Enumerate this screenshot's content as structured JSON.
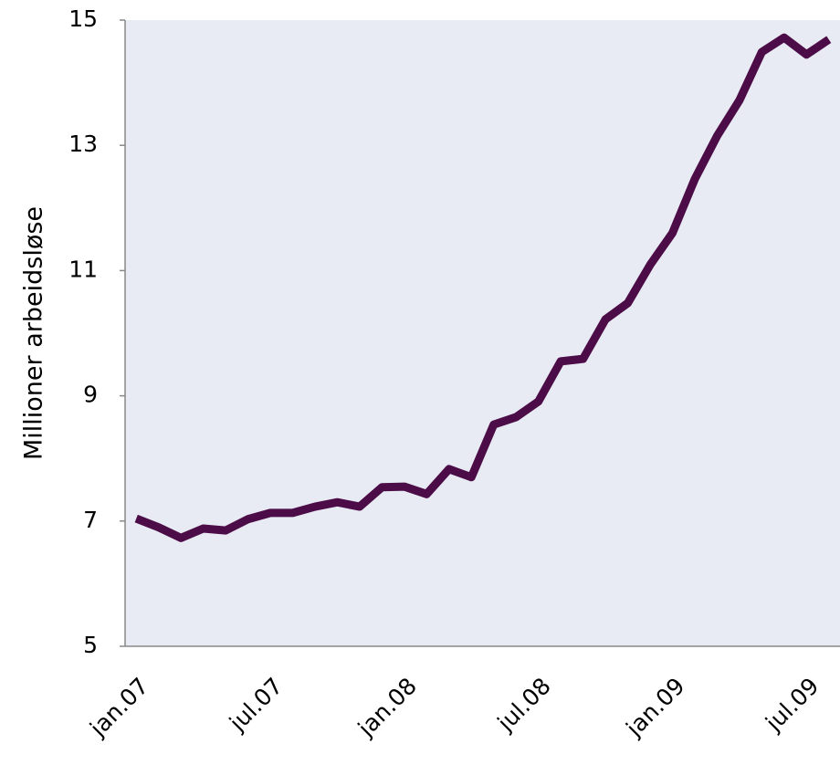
{
  "chart_data": {
    "type": "line",
    "y_label": "Millioner arbeidsløse",
    "categories": [
      "jan.07",
      null,
      null,
      null,
      null,
      null,
      "jul.07",
      null,
      null,
      null,
      null,
      null,
      "jan.08",
      null,
      null,
      null,
      null,
      null,
      "jul.08",
      null,
      null,
      null,
      null,
      null,
      "jan.09",
      null,
      null,
      null,
      null,
      null,
      "jul.09",
      null
    ],
    "series": [
      {
        "name": "Millioner arbeidsløse",
        "color": "#4b0c47",
        "values": [
          7.04,
          6.9,
          6.73,
          6.88,
          6.85,
          7.03,
          7.13,
          7.13,
          7.23,
          7.3,
          7.23,
          7.54,
          7.55,
          7.43,
          7.83,
          7.7,
          8.54,
          8.66,
          8.91,
          9.55,
          9.59,
          10.22,
          10.48,
          11.09,
          11.6,
          12.46,
          13.15,
          13.72,
          14.49,
          14.72,
          14.45,
          14.69
        ]
      }
    ],
    "ylim": [
      5,
      15
    ],
    "yticks": [
      5,
      7,
      9,
      11,
      13,
      15
    ],
    "grid": false,
    "plot_background": "#e8ebf3"
  }
}
